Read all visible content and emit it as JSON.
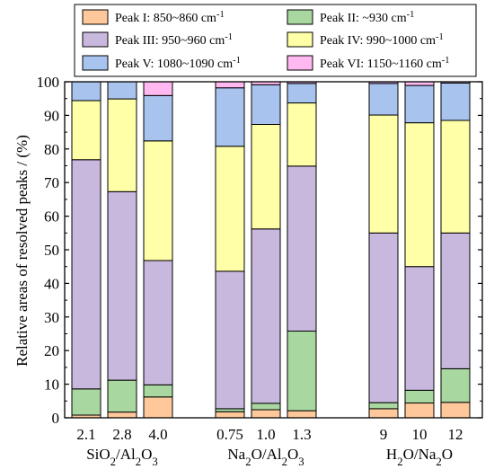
{
  "chart_data": {
    "type": "bar",
    "stacked": true,
    "ylabel": "Relative areas of resolved peaks / (%)",
    "ylim": [
      0,
      100
    ],
    "yticks": [
      0,
      10,
      20,
      30,
      40,
      50,
      60,
      70,
      80,
      90,
      100
    ],
    "grid": false,
    "legend_position": "top",
    "groups": [
      {
        "label": "SiO2/Al2O3",
        "label_parts": [
          [
            "SiO",
            ""
          ],
          [
            "2",
            "sub"
          ],
          [
            "/Al",
            ""
          ],
          [
            "2",
            "sub"
          ],
          [
            "O",
            ""
          ],
          [
            "3",
            "sub"
          ]
        ],
        "categories": [
          "2.1",
          "2.8",
          "4.0"
        ]
      },
      {
        "label": "Na2O/Al2O3",
        "label_parts": [
          [
            "Na",
            ""
          ],
          [
            "2",
            "sub"
          ],
          [
            "O/Al",
            ""
          ],
          [
            "2",
            "sub"
          ],
          [
            "O",
            ""
          ],
          [
            "3",
            "sub"
          ]
        ],
        "categories": [
          "0.75",
          "1.0",
          "1.3"
        ]
      },
      {
        "label": "H2O/Na2O",
        "label_parts": [
          [
            "H",
            ""
          ],
          [
            "2",
            "sub"
          ],
          [
            "O/Na",
            ""
          ],
          [
            "2",
            "sub"
          ],
          [
            "O",
            ""
          ]
        ],
        "categories": [
          "9",
          "10",
          "12"
        ]
      }
    ],
    "series": [
      {
        "name": "Peak I: 850~860 cm-1",
        "name_parts": [
          [
            "Peak I: 850~860 cm",
            ""
          ],
          [
            "-1",
            "sup"
          ]
        ],
        "color": "#FFC89A",
        "values": [
          0.8,
          1.7,
          6.2,
          1.8,
          2.4,
          2.1,
          2.7,
          4.4,
          4.6
        ]
      },
      {
        "name": "Peak II: ~930 cm-1",
        "name_parts": [
          [
            "Peak II: ~930 cm",
            ""
          ],
          [
            "-1",
            "sup"
          ]
        ],
        "color": "#A8D8A0",
        "values": [
          7.8,
          9.5,
          3.6,
          0.9,
          1.9,
          23.7,
          1.8,
          3.8,
          10.0
        ]
      },
      {
        "name": "Peak III: 950~960 cm-1",
        "name_parts": [
          [
            "Peak III: 950~960 cm",
            ""
          ],
          [
            "-1",
            "sup"
          ]
        ],
        "color": "#C9B8DE",
        "values": [
          68.2,
          56.1,
          37.0,
          40.9,
          51.9,
          49.1,
          50.5,
          36.8,
          40.4
        ]
      },
      {
        "name": "Peak IV: 990~1000 cm-1",
        "name_parts": [
          [
            "Peak IV: 990~1000 cm",
            ""
          ],
          [
            "-1",
            "sup"
          ]
        ],
        "color": "#FFFFA8",
        "values": [
          17.6,
          27.6,
          35.6,
          37.2,
          31.1,
          18.8,
          35.1,
          42.8,
          33.5
        ]
      },
      {
        "name": "Peak V: 1080~1090 cm-1",
        "name_parts": [
          [
            "Peak V: 1080~1090 cm",
            ""
          ],
          [
            "-1",
            "sup"
          ]
        ],
        "color": "#A8C4EE",
        "values": [
          5.6,
          5.1,
          13.5,
          17.4,
          11.8,
          5.8,
          9.4,
          11.1,
          11.1
        ]
      },
      {
        "name": "Peak VI: 1150~1160 cm-1",
        "name_parts": [
          [
            "Peak VI: 1150~1160 cm",
            ""
          ],
          [
            "-1",
            "sup"
          ]
        ],
        "color": "#FFB8F0",
        "values": [
          0,
          0,
          4.1,
          1.8,
          0.9,
          0.5,
          0.5,
          1.1,
          0.4
        ]
      }
    ]
  }
}
